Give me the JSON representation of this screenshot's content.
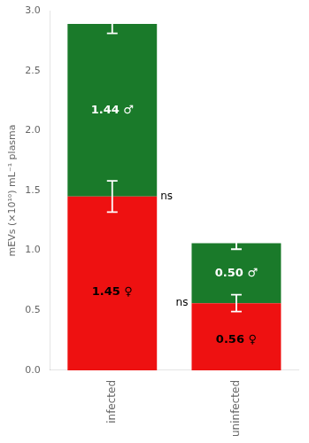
{
  "chart_data": {
    "type": "bar",
    "stacked": true,
    "categories": [
      "infected",
      "uninfected"
    ],
    "series": [
      {
        "color": "#ee1111",
        "values": [
          1.45,
          0.56
        ],
        "errors": [
          0.13,
          0.07
        ],
        "value_labels": [
          "1.45 ♀",
          "0.56 ♀"
        ]
      },
      {
        "color": "#1a7a2a",
        "values": [
          1.44,
          0.5
        ],
        "errors": [
          0.08,
          0.05
        ],
        "value_labels": [
          "1.44 ♂",
          "0.50 ♂"
        ]
      }
    ],
    "data_labels": true,
    "annotations": [
      {
        "text": "ns",
        "x": "infected"
      },
      {
        "text": "ns",
        "x": "uninfected"
      }
    ],
    "ylabel": "mEVs (×10¹⁰) mL⁻¹ plasma",
    "ylim": [
      0,
      3.0
    ],
    "yticks": [
      {
        "value": 0.0,
        "label": "0.0"
      },
      0.5,
      {
        "value": 1.0,
        "label": "1.0"
      },
      1.5,
      {
        "value": 2.0,
        "label": "2.0"
      },
      2.5,
      {
        "value": 3.0,
        "label": "3.0"
      }
    ],
    "grid": false
  }
}
